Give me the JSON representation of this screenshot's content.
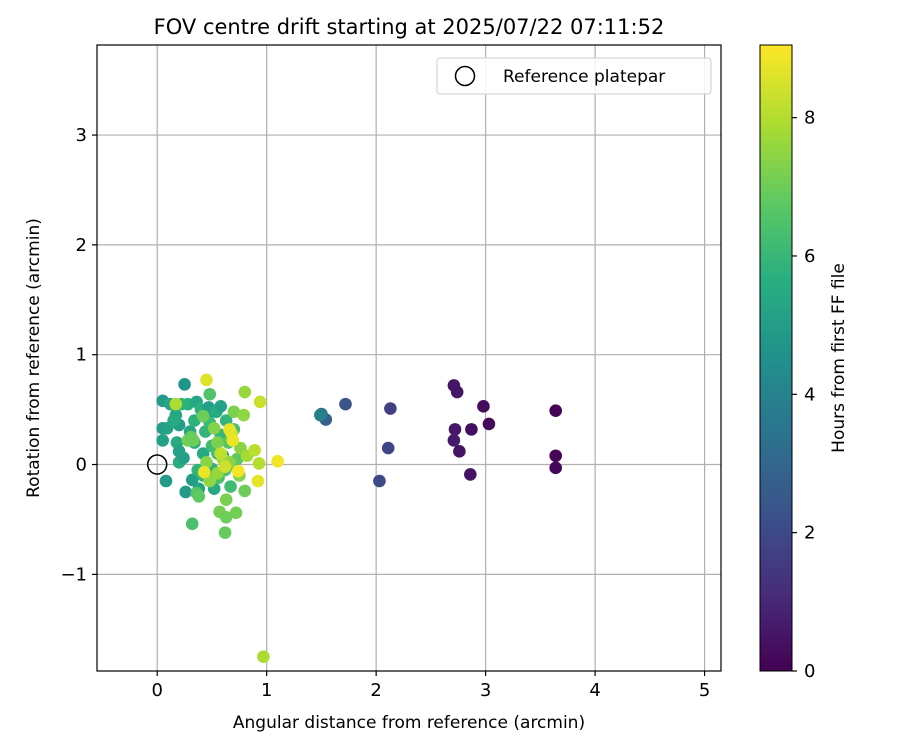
{
  "chart_data": {
    "type": "scatter",
    "title": "FOV centre drift starting at 2025/07/22 07:11:52",
    "xlabel": "Angular distance from reference (arcmin)",
    "ylabel": "Rotation from reference (arcmin)",
    "xlim": [
      -0.55,
      5.15
    ],
    "ylim": [
      -1.88,
      3.82
    ],
    "xticks": [
      0,
      1,
      2,
      3,
      4,
      5
    ],
    "yticks": [
      -1,
      0,
      1,
      2,
      3
    ],
    "grid": true,
    "colormap": "viridis",
    "colorbar": {
      "label": "Hours from first FF file",
      "range": [
        0,
        9.05
      ],
      "ticks": [
        0,
        2,
        4,
        6,
        8
      ]
    },
    "legend": {
      "location": "upper right",
      "entries": [
        "Reference platepar"
      ]
    },
    "reference_point": {
      "x": 0,
      "y": 0,
      "label": "Reference platepar"
    },
    "points": [
      {
        "x": 3.64,
        "y": 0.49,
        "h": 0.05
      },
      {
        "x": 3.64,
        "y": 0.08,
        "h": 0.1
      },
      {
        "x": 3.64,
        "y": -0.03,
        "h": 0.15
      },
      {
        "x": 3.03,
        "y": 0.37,
        "h": 0.2
      },
      {
        "x": 2.98,
        "y": 0.53,
        "h": 0.3
      },
      {
        "x": 2.87,
        "y": 0.32,
        "h": 0.35
      },
      {
        "x": 2.86,
        "y": -0.09,
        "h": 0.4
      },
      {
        "x": 2.76,
        "y": 0.12,
        "h": 0.45
      },
      {
        "x": 2.74,
        "y": 0.66,
        "h": 0.5
      },
      {
        "x": 2.71,
        "y": 0.72,
        "h": 0.55
      },
      {
        "x": 2.72,
        "y": 0.32,
        "h": 0.6
      },
      {
        "x": 2.71,
        "y": 0.22,
        "h": 0.65
      },
      {
        "x": 2.13,
        "y": 0.51,
        "h": 1.7
      },
      {
        "x": 2.11,
        "y": 0.15,
        "h": 1.9
      },
      {
        "x": 2.03,
        "y": -0.15,
        "h": 2.0
      },
      {
        "x": 1.72,
        "y": 0.55,
        "h": 2.3
      },
      {
        "x": 1.54,
        "y": 0.41,
        "h": 2.8
      },
      {
        "x": 1.5,
        "y": 0.46,
        "h": 3.3
      },
      {
        "x": 1.49,
        "y": 0.45,
        "h": 3.9
      },
      {
        "x": 0.08,
        "y": -0.15,
        "h": 4.9
      },
      {
        "x": 0.25,
        "y": 0.73,
        "h": 4.7
      },
      {
        "x": 0.05,
        "y": 0.58,
        "h": 4.9
      },
      {
        "x": 0.05,
        "y": 0.33,
        "h": 5.0
      },
      {
        "x": 0.05,
        "y": 0.22,
        "h": 5.1
      },
      {
        "x": 0.09,
        "y": 0.33,
        "h": 5.2
      },
      {
        "x": 0.12,
        "y": 0.55,
        "h": 5.3
      },
      {
        "x": 0.17,
        "y": 0.45,
        "h": 5.4
      },
      {
        "x": 0.2,
        "y": 0.36,
        "h": 5.0
      },
      {
        "x": 0.18,
        "y": 0.2,
        "h": 5.5
      },
      {
        "x": 0.2,
        "y": 0.12,
        "h": 5.2
      },
      {
        "x": 0.2,
        "y": 0.02,
        "h": 5.6
      },
      {
        "x": 0.24,
        "y": 0.06,
        "h": 5.1
      },
      {
        "x": 0.26,
        "y": -0.25,
        "h": 4.9
      },
      {
        "x": 0.28,
        "y": 0.55,
        "h": 5.7
      },
      {
        "x": 0.3,
        "y": 0.3,
        "h": 5.3
      },
      {
        "x": 0.32,
        "y": -0.14,
        "h": 5.0
      },
      {
        "x": 0.34,
        "y": 0.4,
        "h": 5.8
      },
      {
        "x": 0.34,
        "y": 0.2,
        "h": 5.6
      },
      {
        "x": 0.36,
        "y": 0.57,
        "h": 5.4
      },
      {
        "x": 0.37,
        "y": -0.05,
        "h": 5.9
      },
      {
        "x": 0.38,
        "y": -0.22,
        "h": 5.2
      },
      {
        "x": 0.4,
        "y": 0.5,
        "h": 5.7
      },
      {
        "x": 0.42,
        "y": 0.1,
        "h": 5.5
      },
      {
        "x": 0.42,
        "y": -0.1,
        "h": 6.0
      },
      {
        "x": 0.44,
        "y": 0.3,
        "h": 5.9
      },
      {
        "x": 0.46,
        "y": 0.45,
        "h": 5.3
      },
      {
        "x": 0.47,
        "y": 0.52,
        "h": 5.1
      },
      {
        "x": 0.48,
        "y": 0.38,
        "h": 6.1
      },
      {
        "x": 0.5,
        "y": 0.17,
        "h": 6.2
      },
      {
        "x": 0.5,
        "y": -0.04,
        "h": 5.8
      },
      {
        "x": 0.52,
        "y": -0.22,
        "h": 5.5
      },
      {
        "x": 0.54,
        "y": 0.48,
        "h": 5.6
      },
      {
        "x": 0.55,
        "y": 0.1,
        "h": 6.3
      },
      {
        "x": 0.56,
        "y": -0.12,
        "h": 6.4
      },
      {
        "x": 0.58,
        "y": 0.53,
        "h": 5.2
      },
      {
        "x": 0.58,
        "y": 0.27,
        "h": 6.0
      },
      {
        "x": 0.6,
        "y": 0.08,
        "h": 5.7
      },
      {
        "x": 0.62,
        "y": -0.05,
        "h": 6.5
      },
      {
        "x": 0.63,
        "y": 0.4,
        "h": 5.9
      },
      {
        "x": 0.65,
        "y": 0.2,
        "h": 6.6
      },
      {
        "x": 0.67,
        "y": -0.2,
        "h": 6.2
      },
      {
        "x": 0.68,
        "y": 0.0,
        "h": 6.7
      },
      {
        "x": 0.7,
        "y": 0.32,
        "h": 6.3
      },
      {
        "x": 0.73,
        "y": 0.05,
        "h": 6.8
      },
      {
        "x": 0.22,
        "y": 0.55,
        "h": 5.8
      },
      {
        "x": 0.15,
        "y": 0.4,
        "h": 5.5
      },
      {
        "x": 0.28,
        "y": 0.22,
        "h": 7.1
      },
      {
        "x": 0.31,
        "y": 0.25,
        "h": 6.9
      },
      {
        "x": 0.33,
        "y": 0.22,
        "h": 7.0
      },
      {
        "x": 0.36,
        "y": -0.26,
        "h": 6.6
      },
      {
        "x": 0.38,
        "y": -0.29,
        "h": 6.8
      },
      {
        "x": 0.32,
        "y": -0.54,
        "h": 6.4
      },
      {
        "x": 0.42,
        "y": 0.44,
        "h": 7.0
      },
      {
        "x": 0.48,
        "y": 0.64,
        "h": 6.5
      },
      {
        "x": 0.52,
        "y": 0.33,
        "h": 7.3
      },
      {
        "x": 0.55,
        "y": 0.2,
        "h": 7.2
      },
      {
        "x": 0.57,
        "y": -0.43,
        "h": 7.1
      },
      {
        "x": 0.62,
        "y": -0.62,
        "h": 6.9
      },
      {
        "x": 0.63,
        "y": -0.48,
        "h": 7.0
      },
      {
        "x": 0.63,
        "y": -0.32,
        "h": 7.2
      },
      {
        "x": 0.66,
        "y": 0.02,
        "h": 7.4
      },
      {
        "x": 0.7,
        "y": 0.48,
        "h": 7.2
      },
      {
        "x": 0.72,
        "y": -0.44,
        "h": 7.1
      },
      {
        "x": 0.75,
        "y": -0.1,
        "h": 7.3
      },
      {
        "x": 0.76,
        "y": 0.15,
        "h": 7.4
      },
      {
        "x": 0.79,
        "y": 0.45,
        "h": 7.5
      },
      {
        "x": 0.8,
        "y": -0.24,
        "h": 7.0
      },
      {
        "x": 0.8,
        "y": 0.66,
        "h": 7.6
      },
      {
        "x": 0.82,
        "y": 0.08,
        "h": 7.8
      },
      {
        "x": 0.17,
        "y": 0.55,
        "h": 7.9
      },
      {
        "x": 0.6,
        "y": 0.05,
        "h": 7.7
      },
      {
        "x": 0.55,
        "y": -0.08,
        "h": 7.6
      },
      {
        "x": 0.45,
        "y": 0.02,
        "h": 7.4
      },
      {
        "x": 0.48,
        "y": -0.15,
        "h": 7.5
      },
      {
        "x": 0.89,
        "y": 0.13,
        "h": 8.1
      },
      {
        "x": 0.93,
        "y": 0.01,
        "h": 8.0
      },
      {
        "x": 0.94,
        "y": 0.57,
        "h": 8.3
      },
      {
        "x": 0.97,
        "y": -1.75,
        "h": 7.9
      },
      {
        "x": 0.68,
        "y": 0.28,
        "h": 8.5
      },
      {
        "x": 0.66,
        "y": 0.32,
        "h": 8.7
      },
      {
        "x": 0.69,
        "y": 0.22,
        "h": 8.8
      },
      {
        "x": 0.74,
        "y": -0.06,
        "h": 8.9
      },
      {
        "x": 0.45,
        "y": 0.77,
        "h": 8.6
      },
      {
        "x": 0.43,
        "y": -0.07,
        "h": 8.8
      },
      {
        "x": 0.92,
        "y": -0.15,
        "h": 8.7
      },
      {
        "x": 1.1,
        "y": 0.03,
        "h": 8.9
      },
      {
        "x": 0.58,
        "y": 0.1,
        "h": 8.2
      },
      {
        "x": 0.62,
        "y": -0.02,
        "h": 8.4
      }
    ]
  }
}
